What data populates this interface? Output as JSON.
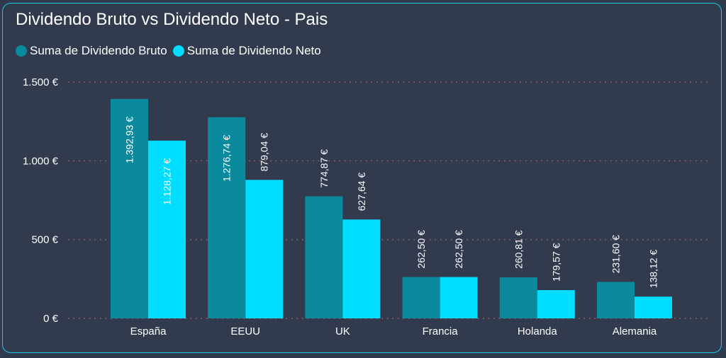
{
  "chart_data": {
    "type": "bar",
    "title": "Dividendo Bruto vs Dividendo Neto - Pais",
    "categories": [
      "España",
      "EEUU",
      "UK",
      "Francia",
      "Holanda",
      "Alemania"
    ],
    "series": [
      {
        "name": "Suma de Dividendo Bruto",
        "color": "#0b8a9e",
        "values": [
          1392.93,
          1276.74,
          774.87,
          262.5,
          260.81,
          231.6
        ],
        "labels": [
          "1.392,93 €",
          "1.276,74 €",
          "774,87 €",
          "262,50 €",
          "260,81 €",
          "231,60 €"
        ]
      },
      {
        "name": "Suma de Dividendo Neto",
        "color": "#00ddff",
        "values": [
          1128.27,
          879.04,
          627.64,
          262.5,
          179.57,
          138.12
        ],
        "labels": [
          "1.128,27 €",
          "879,04 €",
          "627,64 €",
          "262,50 €",
          "179,57 €",
          "138,12 €"
        ]
      }
    ],
    "yticks": [
      0,
      500,
      1000,
      1500
    ],
    "ytick_labels": [
      "0 €",
      "500 €",
      "1.000 €",
      "1.500 €"
    ],
    "ylim": [
      0,
      1500
    ],
    "grid": true,
    "legend_position": "top-left"
  }
}
